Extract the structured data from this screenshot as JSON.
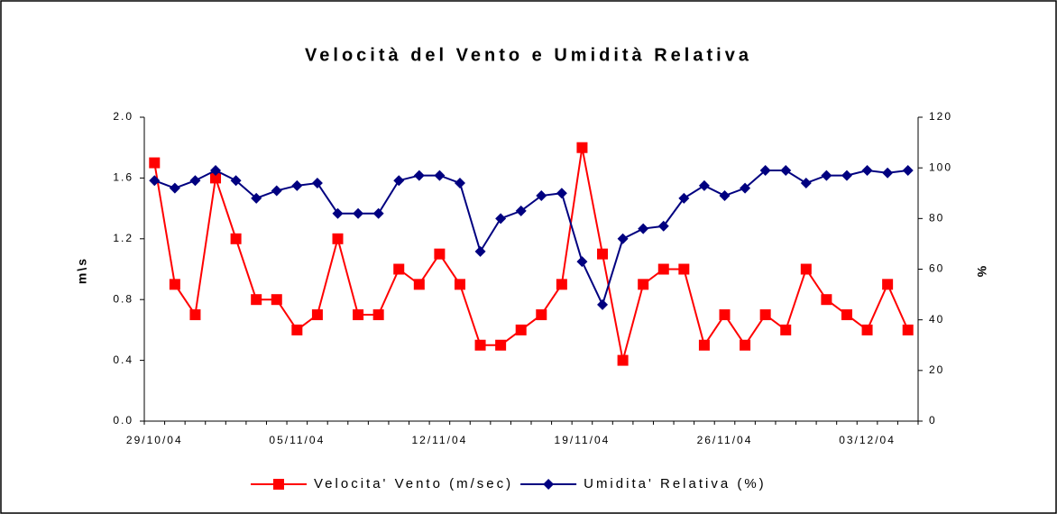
{
  "chart_data": {
    "type": "line",
    "title": "Velocità del Vento e Umidità Relativa",
    "y_label": "m\\s",
    "y2_label": "%",
    "categories": [
      "29/10/04",
      null,
      null,
      null,
      null,
      null,
      null,
      "05/11/04",
      null,
      null,
      null,
      null,
      null,
      null,
      "12/11/04",
      null,
      null,
      null,
      null,
      null,
      null,
      "19/11/04",
      null,
      null,
      null,
      null,
      null,
      null,
      "26/11/04",
      null,
      null,
      null,
      null,
      null,
      null,
      "03/12/04",
      null,
      null
    ],
    "series": [
      {
        "name": "Velocita' Vento (m/sec)",
        "color": "#ff0000",
        "marker": "square",
        "values": [
          1.7,
          0.9,
          0.7,
          1.6,
          1.2,
          0.8,
          0.8,
          0.6,
          0.7,
          1.2,
          0.7,
          0.7,
          1.0,
          0.9,
          1.1,
          0.9,
          0.5,
          0.5,
          0.6,
          0.7,
          0.9,
          1.8,
          1.1,
          0.4,
          0.9,
          1.0,
          1.0,
          0.5,
          0.7,
          0.5,
          0.7,
          0.6,
          1.0,
          0.8,
          0.7,
          0.6,
          0.9,
          0.6
        ]
      },
      {
        "name": "Umidita' Relativa (%)",
        "color": "#000080",
        "marker": "diamond",
        "axis": "y2",
        "values": [
          95,
          92,
          95,
          99,
          95,
          88,
          91,
          93,
          94,
          82,
          82,
          82,
          95,
          97,
          97,
          94,
          67,
          80,
          83,
          89,
          90,
          63,
          46,
          72,
          76,
          77,
          88,
          93,
          89,
          92,
          99,
          99,
          94,
          97,
          97,
          99,
          98,
          99
        ]
      }
    ],
    "ylim": [
      0,
      2
    ],
    "yticks": [
      {
        "value": 0,
        "label": "0.0"
      },
      0.4,
      0.8,
      1.2,
      1.6,
      {
        "value": 2,
        "label": "2.0"
      }
    ],
    "y2lim": [
      0,
      120
    ],
    "y2ticks": [
      0,
      20,
      40,
      60,
      80,
      100,
      120
    ],
    "grid": false,
    "legend": "bottom"
  }
}
